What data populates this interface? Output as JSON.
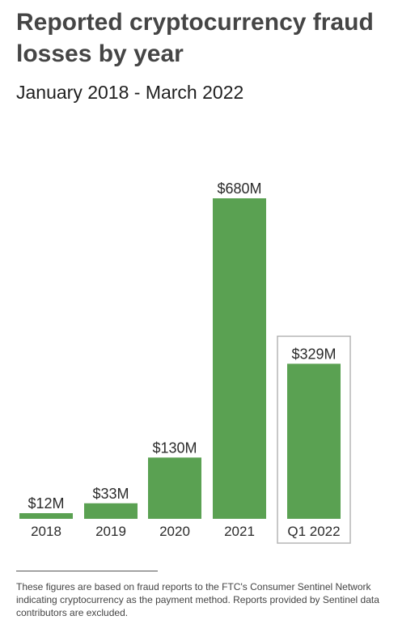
{
  "header": {
    "title": "Reported cryptocurrency fraud losses by year",
    "subtitle": "January 2018 - March 2022"
  },
  "footnote": {
    "text": "These figures are based on fraud reports to the FTC's Consumer Sentinel Network indicating cryptocurrency as the payment method. Reports provided by Sentinel data contributors are excluded."
  },
  "colors": {
    "bar": "#5aa152",
    "highlight_box": "#b5b5b5",
    "text": "#2b2b2b"
  },
  "chart_data": {
    "type": "bar",
    "title": "Reported cryptocurrency fraud losses by year",
    "subtitle": "January 2018 - March 2022",
    "categories": [
      "2018",
      "2019",
      "2020",
      "2021",
      "Q1 2022"
    ],
    "values": [
      12,
      33,
      130,
      680,
      329
    ],
    "value_labels": [
      "$12M",
      "$33M",
      "$130M",
      "$680M",
      "$329M"
    ],
    "unit": "$M",
    "highlighted_category": "Q1 2022",
    "ylim": [
      0,
      680
    ],
    "grid": false,
    "legend": "none"
  }
}
